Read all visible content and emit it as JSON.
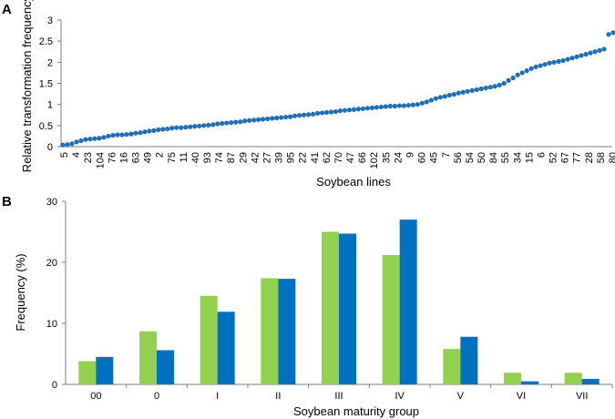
{
  "chart_data": [
    {
      "panel": "A",
      "type": "scatter",
      "title": "",
      "xlabel": "Soybean lines",
      "ylabel": "Relative transformation frequency",
      "ylim": [
        0,
        3
      ],
      "yticks": [
        "0",
        "0.5",
        "1",
        "1.5",
        "2",
        "2.5",
        "3"
      ],
      "grid": false,
      "color": "#1f6fb5",
      "x_tick_labels": [
        "5",
        "4",
        "23",
        "104",
        "76",
        "16",
        "63",
        "49",
        "2",
        "75",
        "11",
        "40",
        "93",
        "74",
        "87",
        "29",
        "42",
        "27",
        "39",
        "95",
        "22",
        "41",
        "62",
        "70",
        "47",
        "66",
        "102",
        "35",
        "24",
        "9",
        "60",
        "45",
        "7",
        "56",
        "54",
        "50",
        "84",
        "55",
        "34",
        "15",
        "6",
        "52",
        "67",
        "77",
        "28",
        "58",
        "80"
      ],
      "values": [
        0.04,
        0.05,
        0.07,
        0.11,
        0.14,
        0.17,
        0.18,
        0.19,
        0.2,
        0.22,
        0.25,
        0.27,
        0.28,
        0.28,
        0.29,
        0.3,
        0.32,
        0.33,
        0.35,
        0.37,
        0.38,
        0.4,
        0.41,
        0.42,
        0.44,
        0.45,
        0.45,
        0.46,
        0.47,
        0.48,
        0.49,
        0.5,
        0.51,
        0.52,
        0.54,
        0.55,
        0.56,
        0.57,
        0.58,
        0.59,
        0.61,
        0.62,
        0.63,
        0.64,
        0.65,
        0.66,
        0.67,
        0.68,
        0.69,
        0.7,
        0.71,
        0.73,
        0.74,
        0.75,
        0.76,
        0.77,
        0.79,
        0.8,
        0.81,
        0.82,
        0.83,
        0.85,
        0.86,
        0.87,
        0.88,
        0.89,
        0.9,
        0.91,
        0.92,
        0.93,
        0.94,
        0.95,
        0.96,
        0.96,
        0.97,
        0.97,
        0.98,
        0.99,
        1.0,
        1.03,
        1.06,
        1.1,
        1.14,
        1.17,
        1.19,
        1.22,
        1.24,
        1.27,
        1.29,
        1.31,
        1.33,
        1.35,
        1.37,
        1.39,
        1.41,
        1.43,
        1.46,
        1.5,
        1.57,
        1.63,
        1.7,
        1.75,
        1.8,
        1.85,
        1.89,
        1.92,
        1.95,
        1.98,
        2.0,
        2.02,
        2.04,
        2.07,
        2.1,
        2.13,
        2.16,
        2.19,
        2.22,
        2.25,
        2.28,
        2.31,
        2.66,
        2.7
      ]
    },
    {
      "panel": "B",
      "type": "bar",
      "title": "",
      "xlabel": "Soybean maturity group",
      "ylabel": "Frequency (%)",
      "ylim": [
        0,
        30
      ],
      "yticks": [
        "0",
        "10",
        "20",
        "30"
      ],
      "grid": false,
      "categories": [
        "00",
        "0",
        "I",
        "II",
        "III",
        "IV",
        "V",
        "VI",
        "VII"
      ],
      "series": [
        {
          "name": "",
          "color": "#92d050",
          "values": [
            3.8,
            8.7,
            14.5,
            17.4,
            25.0,
            21.2,
            5.8,
            1.9,
            1.9
          ]
        },
        {
          "name": "",
          "color": "#0070c0",
          "values": [
            4.5,
            5.6,
            11.9,
            17.3,
            24.7,
            27.0,
            7.8,
            0.5,
            0.9
          ]
        }
      ]
    }
  ]
}
